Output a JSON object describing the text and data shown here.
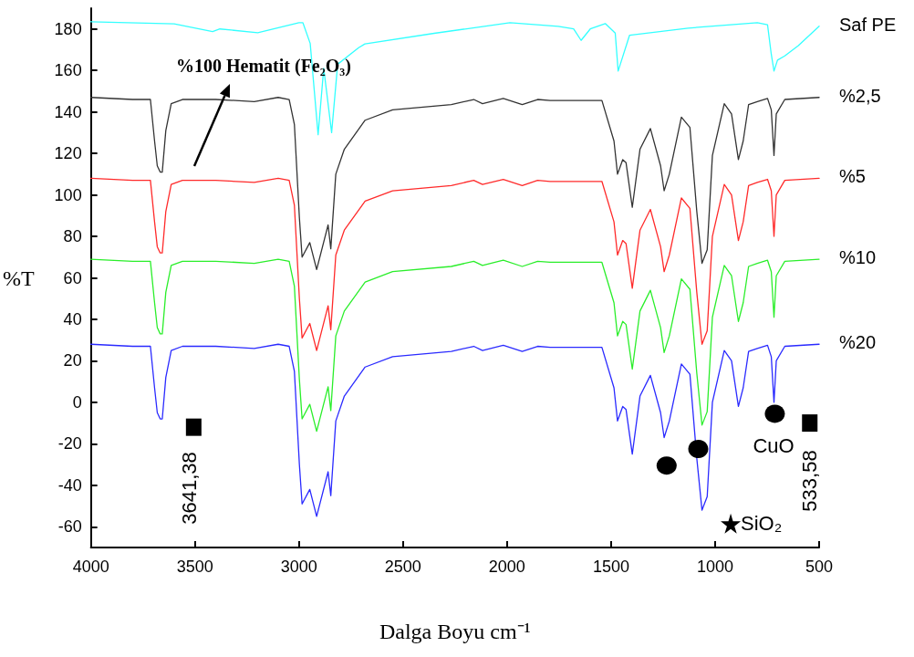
{
  "chart_data": {
    "type": "line",
    "xlabel": "Dalga Boyu cm⁻¹",
    "ylabel": "%T",
    "xlim": [
      4000,
      500
    ],
    "xticks": [
      4000,
      3500,
      3000,
      2500,
      2000,
      1500,
      1000,
      500
    ],
    "ylim": [
      -70,
      190
    ],
    "yticks": [
      -60,
      -40,
      -20,
      0,
      20,
      40,
      60,
      80,
      100,
      120,
      140,
      160,
      180
    ],
    "grid": false,
    "legend": false,
    "line_style": "solid",
    "marker": "none",
    "x": [
      4000,
      3800,
      3714,
      3694,
      3681,
      3667,
      3657,
      3640,
      3614,
      3560,
      3400,
      3215,
      3100,
      3047,
      3022,
      2998,
      2985,
      2948,
      2915,
      2860,
      2847,
      2823,
      2782,
      2682,
      2550,
      2268,
      2160,
      2118,
      2018,
      1927,
      1853,
      1793,
      1544,
      1486,
      1469,
      1444,
      1428,
      1398,
      1361,
      1311,
      1262,
      1245,
      1220,
      1162,
      1121,
      1088,
      1063,
      1038,
      1013,
      956,
      921,
      888,
      865,
      839,
      797,
      748,
      730,
      717,
      706,
      665,
      500
    ],
    "series": [
      {
        "name": "Saf PE",
        "color": "#33ffff",
        "x": [
          4000,
          3600,
          3415,
          3380,
          3198,
          3000,
          2981,
          2946,
          2908,
          2881,
          2843,
          2814,
          2713,
          2683,
          2350,
          1986,
          1754,
          1680,
          1644,
          1600,
          1528,
          1480,
          1466,
          1411,
          1130,
          797,
          748,
          730,
          717,
          700,
          665,
          600,
          500
        ],
        "values": [
          183.5,
          182.5,
          178.7,
          180,
          178.2,
          183,
          183,
          173,
          129,
          161,
          130,
          163,
          171,
          172.8,
          177.9,
          183,
          181.3,
          180,
          174.5,
          180,
          182.6,
          178,
          159.7,
          177,
          180.4,
          183,
          182,
          167.8,
          159.7,
          165,
          167,
          172,
          181.3
        ]
      },
      {
        "name": "%2,5",
        "color": "#333333",
        "values": [
          147,
          146,
          146,
          126,
          114,
          111,
          111,
          131,
          144,
          146,
          146,
          145,
          147,
          146,
          134,
          89,
          70,
          77,
          64,
          85.5,
          74,
          110,
          122,
          136,
          141,
          143.5,
          146,
          144,
          146.5,
          143.5,
          146,
          145.5,
          145.5,
          126,
          110,
          117,
          115.5,
          94,
          122,
          132,
          114,
          102,
          110,
          137.5,
          132.5,
          92,
          67,
          73.5,
          119,
          144,
          139,
          117,
          126,
          143.5,
          145,
          146.5,
          141,
          119,
          139,
          146,
          147
        ]
      },
      {
        "name": "%5",
        "color": "#ff2a2a",
        "values": [
          108,
          107,
          107,
          87,
          75,
          72,
          72,
          92,
          105,
          107,
          107,
          106,
          108,
          107,
          95,
          50,
          31,
          38,
          25,
          46.5,
          35,
          71,
          83,
          97,
          102,
          104.5,
          107,
          105,
          107.5,
          104.5,
          107,
          106.5,
          106.5,
          87,
          71,
          78,
          76.5,
          55,
          83,
          93,
          75,
          63,
          71,
          98.5,
          93.5,
          53,
          28,
          34.5,
          80,
          105,
          100,
          78,
          87,
          104.5,
          106,
          107.5,
          102,
          80,
          100,
          107,
          108
        ]
      },
      {
        "name": "%10",
        "color": "#2aee2a",
        "values": [
          69,
          68,
          68,
          48,
          36,
          33,
          33,
          53,
          66,
          68,
          68,
          67,
          69,
          68,
          56,
          11,
          -8,
          -1,
          -14,
          7.5,
          -4,
          32,
          44,
          58,
          63,
          65.5,
          68,
          66,
          68.5,
          65.5,
          68,
          67.5,
          67.5,
          48,
          32,
          39,
          37.5,
          16,
          44,
          54,
          36,
          24,
          32,
          59.5,
          54.5,
          14,
          -11,
          -4.5,
          41,
          66,
          61,
          39,
          48,
          65.5,
          67,
          68.5,
          63,
          41,
          61,
          68,
          69
        ]
      },
      {
        "name": "%20",
        "color": "#2a2aff",
        "values": [
          28,
          27,
          27,
          7,
          -5,
          -8,
          -8,
          12,
          25,
          27,
          27,
          26,
          28,
          27,
          15,
          -30,
          -49,
          -42,
          -55,
          -33.5,
          -45,
          -9,
          3,
          17,
          22,
          24.5,
          27,
          25,
          27.5,
          24.5,
          27,
          26.5,
          26.5,
          7,
          -9,
          -2,
          -3.5,
          -25,
          3,
          13,
          -5,
          -17,
          -9,
          18.5,
          13.5,
          -27,
          -52,
          -45.5,
          0,
          25,
          20,
          -2,
          7,
          24.5,
          26,
          27.5,
          22,
          0,
          20,
          27,
          28
        ]
      },
      {
        "type": "scatter",
        "marker": "square",
        "color": "#000000",
        "x": [
          3506,
          545
        ],
        "values": [
          -12,
          -10
        ]
      },
      {
        "type": "scatter",
        "marker": "circle",
        "color": "#000000",
        "x": [
          1233,
          1081,
          713
        ],
        "values": [
          -30.5,
          -22.5,
          -5.5
        ]
      },
      {
        "type": "scatter",
        "marker": "star",
        "color": "#000000",
        "x": [
          925
        ],
        "values": [
          -58.5
        ]
      }
    ],
    "annotations": [
      "%100 Hematit (Fe₂O₃)",
      "3641,38",
      "533,58",
      "CuO",
      "SiO₂"
    ]
  }
}
